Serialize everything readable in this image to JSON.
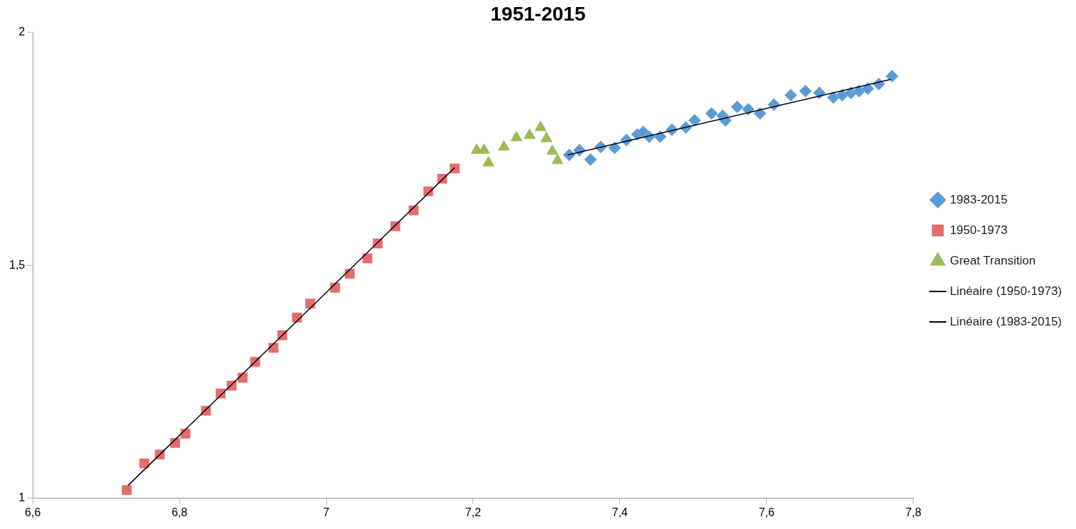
{
  "chart_data": {
    "type": "scatter",
    "title": "1951-2015",
    "xlim": [
      6.6,
      7.8
    ],
    "xticks": [
      {
        "value": 6.6,
        "label": "6,6"
      },
      {
        "value": 6.8,
        "label": "6,8"
      },
      {
        "value": 7,
        "label": "7"
      },
      {
        "value": 7.2,
        "label": "7,2"
      },
      {
        "value": 7.4,
        "label": "7,4"
      },
      {
        "value": 7.6,
        "label": "7,6"
      },
      {
        "value": 7.8,
        "label": "7,8"
      }
    ],
    "ylim": [
      1,
      2
    ],
    "yticks": [
      1,
      {
        "value": 1.5,
        "label": "1,5"
      },
      2
    ],
    "grid": false,
    "legend": "right",
    "series": [
      {
        "name": "1983-2015",
        "color": "#5b9bd5",
        "marker": "diamond",
        "x": [
          7.331,
          7.345,
          7.36,
          7.374,
          7.393,
          7.409,
          7.424,
          7.432,
          7.44,
          7.455,
          7.471,
          7.49,
          7.502,
          7.525,
          7.54,
          7.544,
          7.56,
          7.575,
          7.591,
          7.61,
          7.633,
          7.653,
          7.672,
          7.691,
          7.703,
          7.715,
          7.726,
          7.738,
          7.753,
          7.771
        ],
        "values": [
          1.737,
          1.747,
          1.727,
          1.754,
          1.752,
          1.769,
          1.781,
          1.786,
          1.776,
          1.776,
          1.791,
          1.796,
          1.811,
          1.826,
          1.821,
          1.811,
          1.84,
          1.835,
          1.826,
          1.845,
          1.865,
          1.874,
          1.87,
          1.86,
          1.865,
          1.87,
          1.874,
          1.879,
          1.889,
          1.906
        ]
      },
      {
        "name": "1950-1973",
        "color": "#e46c6c",
        "marker": "square",
        "x": [
          6.728,
          6.752,
          6.773,
          6.794,
          6.808,
          6.836,
          6.856,
          6.871,
          6.886,
          6.903,
          6.928,
          6.94,
          6.96,
          6.978,
          7.012,
          7.032,
          7.056,
          7.07,
          7.094,
          7.119,
          7.139,
          7.158,
          7.175
        ],
        "values": [
          1.018,
          1.075,
          1.094,
          1.119,
          1.139,
          1.188,
          1.225,
          1.242,
          1.259,
          1.293,
          1.323,
          1.35,
          1.388,
          1.418,
          1.452,
          1.482,
          1.515,
          1.547,
          1.584,
          1.618,
          1.659,
          1.686,
          1.708
        ]
      },
      {
        "name": "Great Transition",
        "color": "#9bbb59",
        "marker": "triangle",
        "x": [
          7.205,
          7.215,
          7.221,
          7.242,
          7.259,
          7.277,
          7.292,
          7.3,
          7.308,
          7.315
        ],
        "values": [
          1.747,
          1.747,
          1.72,
          1.754,
          1.774,
          1.779,
          1.796,
          1.772,
          1.745,
          1.725
        ]
      },
      {
        "name": "Linéaire (1950-1973)",
        "type": "line",
        "color": "#000000",
        "marker": "none",
        "line_style": "solid",
        "x": [
          6.73,
          7.175
        ],
        "values": [
          1.028,
          1.71
        ]
      },
      {
        "name": "Linéaire (1983-2015)",
        "type": "line",
        "color": "#000000",
        "marker": "none",
        "line_style": "solid",
        "x": [
          7.329,
          7.769
        ],
        "values": [
          1.737,
          1.899
        ]
      }
    ]
  }
}
